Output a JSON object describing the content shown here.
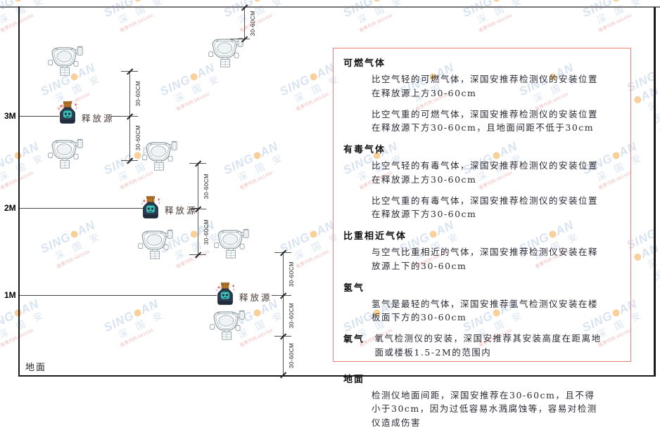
{
  "watermark": {
    "brand_left": "SING",
    "brand_right": "AN",
    "cn": "深 国 安",
    "sub": "股票代码:661434"
  },
  "diagram": {
    "heights": [
      "3M",
      "2M",
      "1M"
    ],
    "ground_label": "地面",
    "release_source_label": "释放源",
    "dim_label": "30-60CM"
  },
  "panel": {
    "border_color": "#e88080",
    "sections": [
      {
        "heading": "可燃气体",
        "paragraphs": [
          "比空气轻的可燃气体，深国安推荐检测仪的安装位置在释放源上方30-60cm",
          "比空气重的可燃气体，深国安推荐检测仪的安装位置在释放源下方30-60cm，且地面间距不低于30cm"
        ]
      },
      {
        "heading": "有毒气体",
        "paragraphs": [
          "比空气轻的有毒气体，深国安推荐检测仪的安装位置在释放源上方30-60cm",
          "比空气重的有毒气体，深国安推荐检测仪的安装位置在释放源下方30-60cm"
        ]
      },
      {
        "heading": "比重相近气体",
        "paragraphs": [
          "与空气比重相近的气体，深国安推荐检测仪安装在释放源上下的30-60cm"
        ]
      },
      {
        "heading": "氢气",
        "paragraphs": [
          "氢气是最轻的气体，深国安推荐氢气检测仪安装在楼板面下方的30-60cm"
        ]
      },
      {
        "heading": "氧气",
        "paragraphs": [
          "氧气检测仪的安装，深国安推荐其安装高度在距离地面或楼板1.5-2M的范围内"
        ]
      },
      {
        "heading": "地面",
        "paragraphs": [
          "检测仪地面间距，深国安推荐在30-60cm，且不得小于30cm，因为过低容易水溅腐蚀等，容易对检测仪造成伤害"
        ]
      }
    ]
  }
}
